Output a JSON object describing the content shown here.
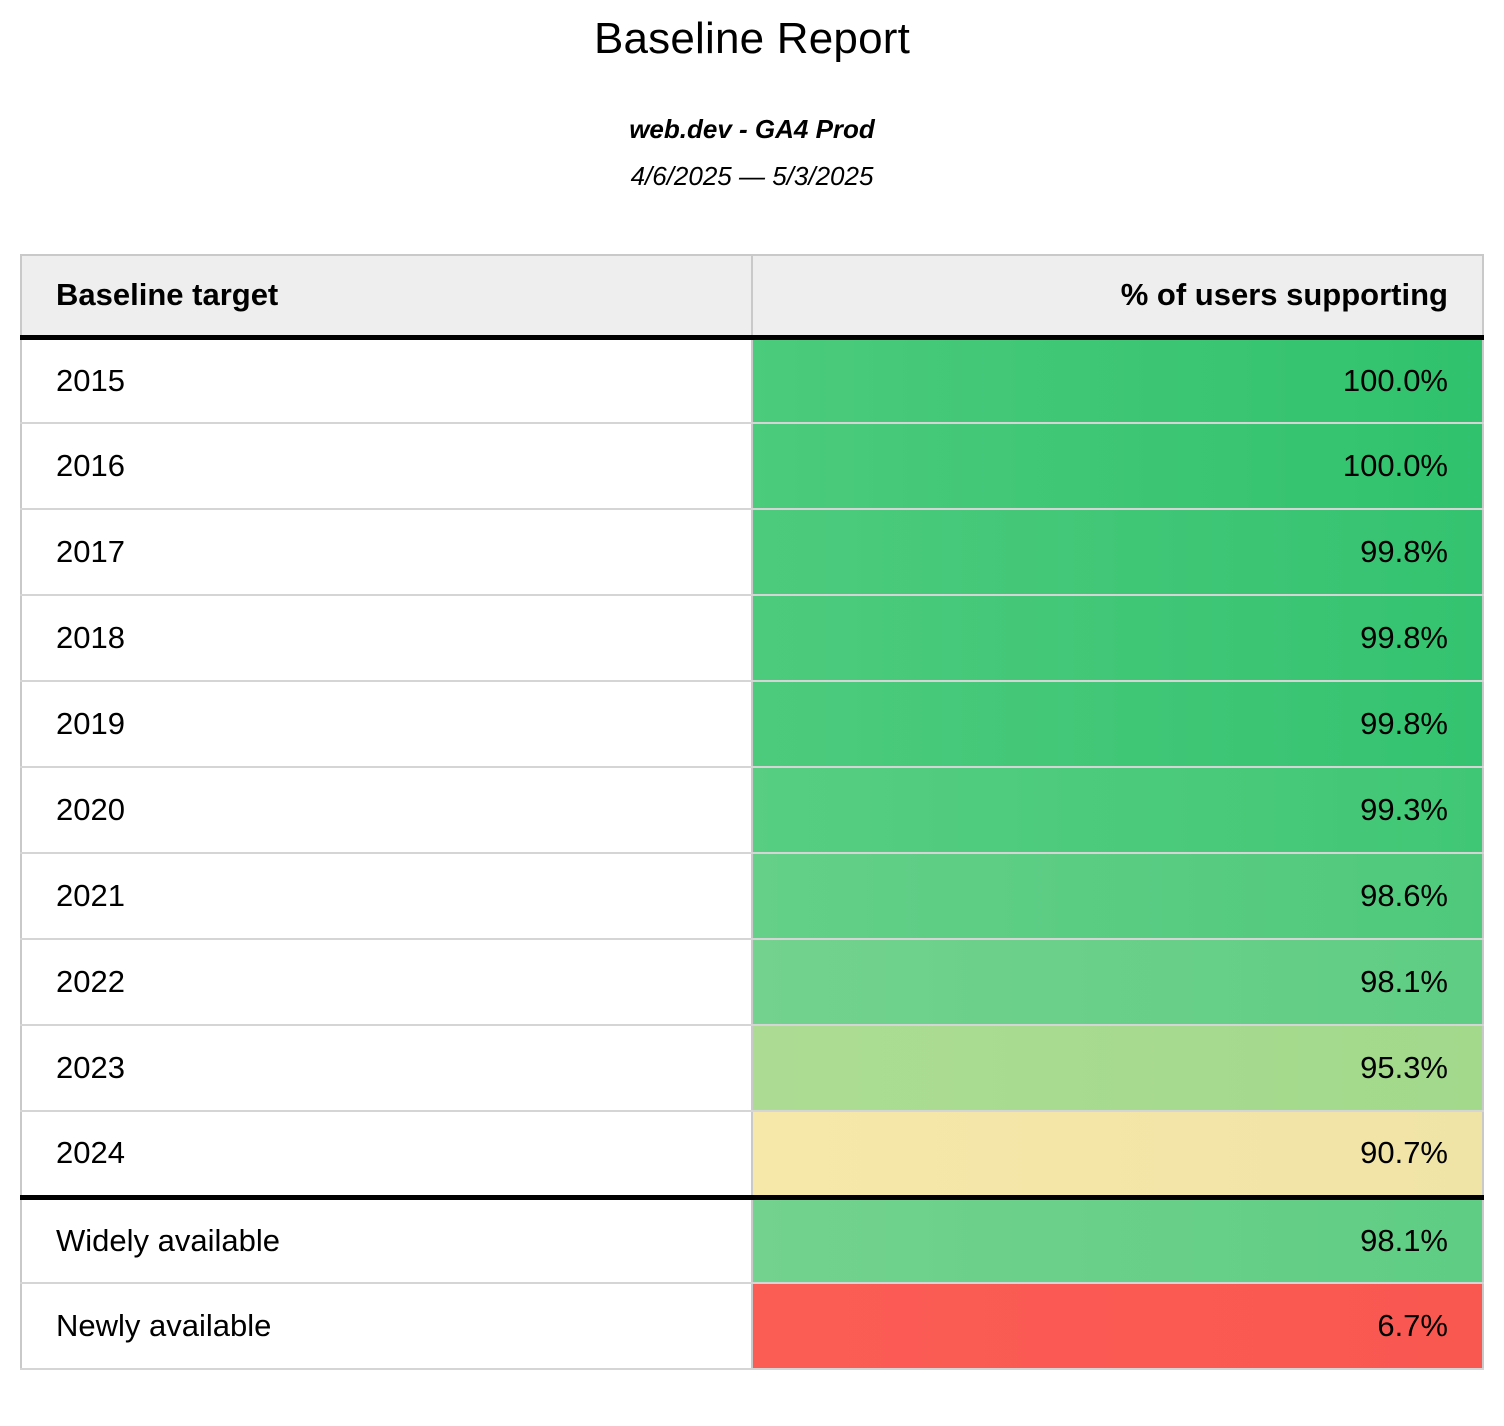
{
  "page": {
    "title": "Baseline Report",
    "subtitle": "web.dev - GA4 Prod",
    "date_range": "4/6/2025 — 5/3/2025"
  },
  "table": {
    "columns": [
      {
        "label": "Baseline target"
      },
      {
        "label": "% of users supporting"
      }
    ],
    "rows": [
      {
        "label": "2015",
        "value": "100.0%",
        "bg_from": "#4bcb7c",
        "bg_to": "#30c26d",
        "section": "year"
      },
      {
        "label": "2016",
        "value": "100.0%",
        "bg_from": "#4bcb7c",
        "bg_to": "#30c26d",
        "section": "year"
      },
      {
        "label": "2017",
        "value": "99.8%",
        "bg_from": "#4dcb7d",
        "bg_to": "#34c370",
        "section": "year"
      },
      {
        "label": "2018",
        "value": "99.8%",
        "bg_from": "#4dcb7d",
        "bg_to": "#34c370",
        "section": "year"
      },
      {
        "label": "2019",
        "value": "99.8%",
        "bg_from": "#4dcb7d",
        "bg_to": "#34c370",
        "section": "year"
      },
      {
        "label": "2020",
        "value": "99.3%",
        "bg_from": "#57ce82",
        "bg_to": "#40c775",
        "section": "year"
      },
      {
        "label": "2021",
        "value": "98.6%",
        "bg_from": "#64d088",
        "bg_to": "#4fc97c",
        "section": "year"
      },
      {
        "label": "2022",
        "value": "98.1%",
        "bg_from": "#72d28e",
        "bg_to": "#5fcd84",
        "section": "year"
      },
      {
        "label": "2023",
        "value": "95.3%",
        "bg_from": "#acdc93",
        "bg_to": "#a2d98b",
        "section": "year"
      },
      {
        "label": "2024",
        "value": "90.7%",
        "bg_from": "#f6e8a8",
        "bg_to": "#f0e3a6",
        "section": "year"
      },
      {
        "label": "Widely available",
        "value": "98.1%",
        "bg_from": "#72d28e",
        "bg_to": "#5fcd84",
        "section": "summary"
      },
      {
        "label": "Newly available",
        "value": "6.7%",
        "bg_from": "#fb5c54",
        "bg_to": "#f95851",
        "section": "summary"
      }
    ]
  },
  "chart_data": {
    "type": "table",
    "title": "Baseline Report",
    "subtitle": "web.dev - GA4 Prod",
    "date_range": "4/6/2025 — 5/3/2025",
    "columns": [
      "Baseline target",
      "% of users supporting"
    ],
    "rows": [
      [
        "2015",
        100.0
      ],
      [
        "2016",
        100.0
      ],
      [
        "2017",
        99.8
      ],
      [
        "2018",
        99.8
      ],
      [
        "2019",
        99.8
      ],
      [
        "2020",
        99.3
      ],
      [
        "2021",
        98.6
      ],
      [
        "2022",
        98.1
      ],
      [
        "2023",
        95.3
      ],
      [
        "2024",
        90.7
      ],
      [
        "Widely available",
        98.1
      ],
      [
        "Newly available",
        6.7
      ]
    ],
    "value_color_scale": "conditional formatting: green (high %) → light green → yellow (~90%) → red (low %)",
    "layout_hints": {
      "value_alignment": "right",
      "thick_divider_after_row": "2024",
      "header_background": "#eeeeee"
    }
  },
  "colors": {
    "page_bg": "#ffffff",
    "text": "#000000",
    "header_bg": "#eeeeee",
    "grid_border": "#d5d5d5",
    "outer_border": "#c9c9c9",
    "column_divider": "#c9c9c9",
    "section_divider": "#000000"
  }
}
